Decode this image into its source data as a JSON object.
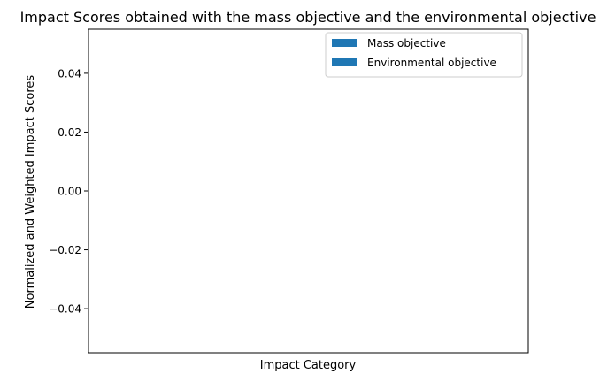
{
  "chart_data": {
    "type": "bar",
    "title": "Impact Scores obtained with the mass objective and the environmental objective",
    "xlabel": "Impact Category",
    "ylabel": "Normalized and Weighted Impact Scores",
    "categories": [],
    "series": [
      {
        "name": "Mass objective",
        "values": [],
        "color": "#1f77b4"
      },
      {
        "name": "Environmental objective",
        "values": [],
        "color": "#1f77b4"
      }
    ],
    "ylim": [
      -0.055,
      0.055
    ],
    "yticks": [
      -0.04,
      -0.02,
      0.0,
      0.02,
      0.04
    ],
    "ytick_labels": [
      "−0.04",
      "−0.02",
      "0.00",
      "0.02",
      "0.04"
    ],
    "grid": false,
    "legend_position": "upper-right"
  }
}
